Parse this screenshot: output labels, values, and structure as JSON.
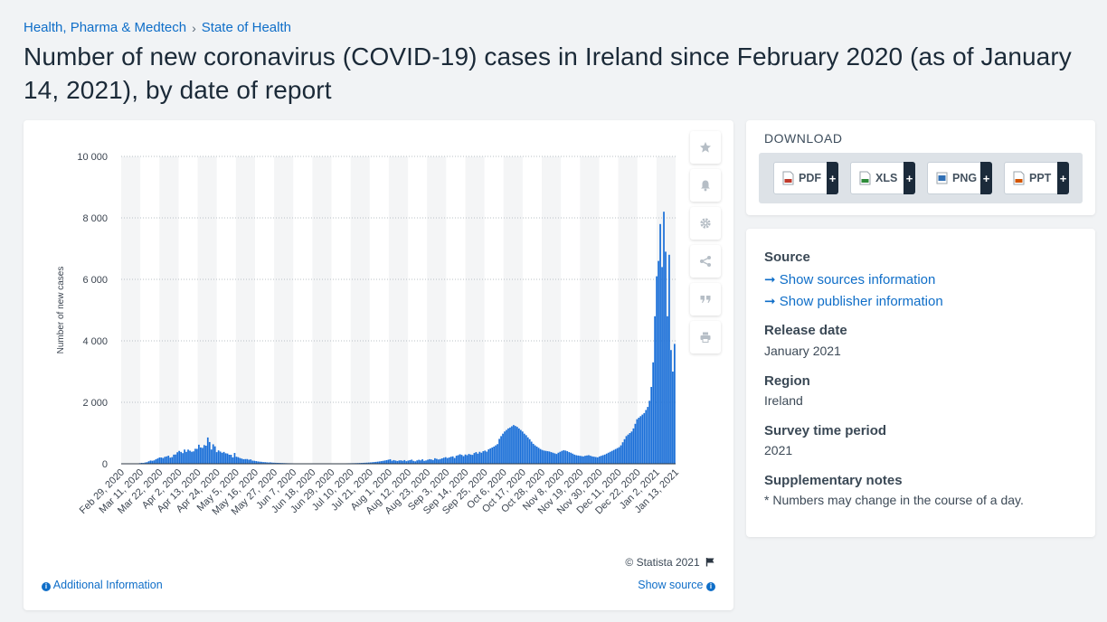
{
  "breadcrumb": {
    "item1": "Health, Pharma & Medtech",
    "separator": "›",
    "item2": "State of Health"
  },
  "title": "Number of new coronavirus (COVID-19) cases in Ireland since February 2020 (as of January 14, 2021), by date of report",
  "toolbar": {
    "icons": [
      "star-icon",
      "bell-icon",
      "gear-icon",
      "share-icon",
      "quote-icon",
      "print-icon"
    ]
  },
  "chart_footer": {
    "credit": "© Statista 2021",
    "additional_info": "Additional Information",
    "show_source": "Show source"
  },
  "download": {
    "title": "DOWNLOAD",
    "buttons": [
      {
        "label": "PDF",
        "color": "#c0392b"
      },
      {
        "label": "XLS",
        "color": "#2e8b3a"
      },
      {
        "label": "PNG",
        "color": "#2f6fb5"
      },
      {
        "label": "PPT",
        "color": "#d35400"
      }
    ],
    "plus": "+"
  },
  "meta": {
    "source_heading": "Source",
    "link1": "Show sources information",
    "link2": "Show publisher information",
    "release_heading": "Release date",
    "release_value": "January 2021",
    "region_heading": "Region",
    "region_value": "Ireland",
    "period_heading": "Survey time period",
    "period_value": "2021",
    "notes_heading": "Supplementary notes",
    "notes_value": "* Numbers may change in the course of a day."
  },
  "colors": {
    "bar": "#1a6fd8",
    "accent": "#0f6ec8"
  },
  "chart_data": {
    "type": "bar",
    "title": "",
    "xlabel": "",
    "ylabel": "Number of new cases",
    "ylim": [
      0,
      10000
    ],
    "yticks": [
      0,
      2000,
      4000,
      6000,
      8000,
      10000
    ],
    "ytick_labels": [
      "0",
      "2 000",
      "4 000",
      "6 000",
      "8 000",
      "10 000"
    ],
    "x_start": "Feb 29, 2020",
    "x_end": "Jan 13, 2021",
    "xtick_labels": [
      "Feb 29, 2020",
      "Mar 11, 2020",
      "Mar 22, 2020",
      "Apr 2, 2020",
      "Apr 13, 2020",
      "Apr 24, 2020",
      "May 5, 2020",
      "May 16, 2020",
      "May 27, 2020",
      "Jun 7, 2020",
      "Jun 18, 2020",
      "Jun 29, 2020",
      "Jul 10, 2020",
      "Jul 21, 2020",
      "Aug 1, 2020",
      "Aug 12, 2020",
      "Aug 23, 2020",
      "Sep 3, 2020",
      "Sep 14, 2020",
      "Sep 25, 2020",
      "Oct 6, 2020",
      "Oct 17, 2020",
      "Oct 28, 2020",
      "Nov 8, 2020",
      "Nov 19, 2020",
      "Nov 30, 2020",
      "Dec 11, 2020",
      "Dec 22, 2020",
      "Jan 2, 2021",
      "Jan 13, 2021"
    ],
    "grid": true,
    "series": [
      {
        "values": [
          1,
          0,
          0,
          2,
          6,
          13,
          6,
          5,
          9,
          10,
          21,
          30,
          27,
          42,
          52,
          82,
          106,
          98,
          112,
          147,
          174,
          205,
          204,
          188,
          227,
          241,
          264,
          200,
          217,
          298,
          302,
          375,
          419,
          387,
          347,
          463,
          389,
          461,
          426,
          392,
          404,
          488,
          485,
          621,
          531,
          517,
          609,
          588,
          856,
          708,
          464,
          634,
          567,
          379,
          436,
          398,
          359,
          386,
          342,
          334,
          294,
          293,
          209,
          352,
          229,
          215,
          187,
          169,
          149,
          153,
          154,
          132,
          142,
          103,
          98,
          87,
          76,
          69,
          64,
          55,
          53,
          47,
          42,
          46,
          38,
          35,
          32,
          30,
          28,
          26,
          24,
          22,
          20,
          18,
          17,
          16,
          15,
          14,
          13,
          12,
          12,
          11,
          10,
          10,
          10,
          9,
          9,
          9,
          9,
          8,
          8,
          8,
          8,
          8,
          8,
          9,
          9,
          9,
          10,
          10,
          11,
          11,
          12,
          13,
          14,
          15,
          16,
          17,
          18,
          19,
          20,
          22,
          24,
          26,
          28,
          31,
          34,
          37,
          41,
          45,
          50,
          56,
          62,
          69,
          77,
          86,
          96,
          107,
          119,
          133,
          148,
          98,
          120,
          105,
          90,
          108,
          112,
          97,
          120,
          85,
          104,
          118,
          135,
          96,
          80,
          110,
          130,
          112,
          145,
          96,
          108,
          132,
          150,
          140,
          122,
          180,
          160,
          140,
          155,
          176,
          198,
          215,
          188,
          206,
          230,
          242,
          190,
          262,
          280,
          310,
          290,
          250,
          302,
          280,
          320,
          300,
          290,
          350,
          380,
          330,
          390,
          360,
          410,
          430,
          396,
          470,
          500,
          530,
          560,
          600,
          640,
          810,
          900,
          980,
          1050,
          1100,
          1150,
          1180,
          1220,
          1260,
          1230,
          1200,
          1150,
          1100,
          1050,
          980,
          930,
          860,
          800,
          720,
          650,
          600,
          560,
          520,
          480,
          450,
          430,
          420,
          410,
          400,
          380,
          360,
          340,
          320,
          360,
          390,
          420,
          440,
          430,
          410,
          380,
          360,
          330,
          300,
          280,
          270,
          260,
          250,
          240,
          260,
          270,
          280,
          260,
          240,
          230,
          220,
          210,
          240,
          260,
          280,
          300,
          330,
          360,
          390,
          420,
          450,
          480,
          510,
          540,
          600,
          700,
          800,
          900,
          950,
          1000,
          1050,
          1150,
          1300,
          1450,
          1500,
          1550,
          1600,
          1650,
          1750,
          1850,
          2050,
          2500,
          3300,
          4800,
          6100,
          6600,
          7800,
          6400,
          8200,
          6900,
          4800,
          6800,
          3700,
          3000,
          3900
        ]
      }
    ]
  }
}
